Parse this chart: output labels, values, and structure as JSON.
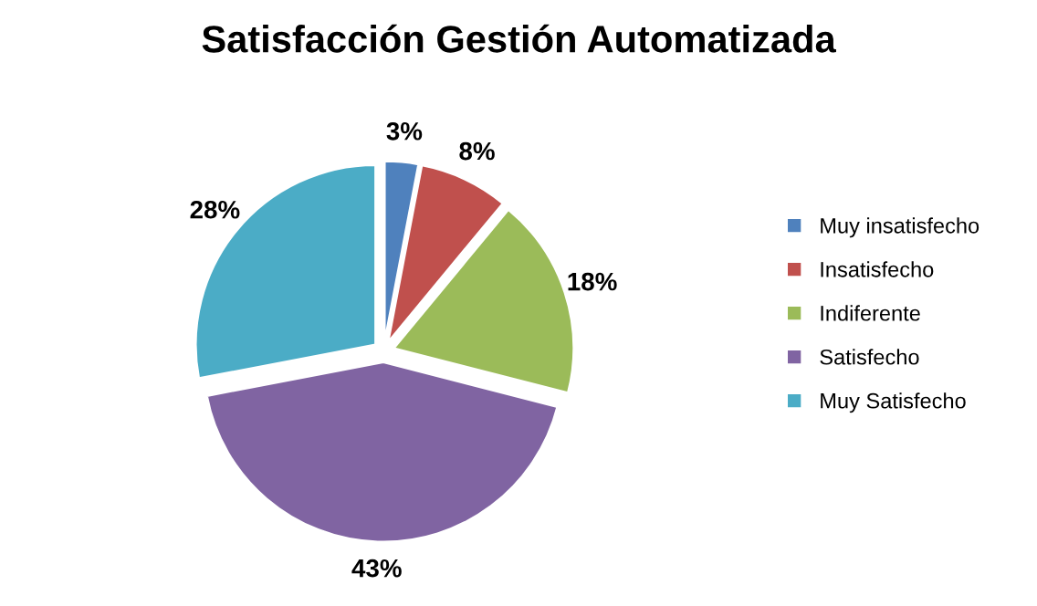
{
  "chart_data": {
    "type": "pie",
    "title": "Satisfacción Gestión Automatizada",
    "categories": [
      "Muy insatisfecho",
      "Insatisfecho",
      "Indiferente",
      "Satisfecho",
      "Muy Satisfecho"
    ],
    "values": [
      3,
      8,
      18,
      43,
      28
    ],
    "colors": [
      "#4f81bd",
      "#c0504d",
      "#9bbb59",
      "#8064a2",
      "#4bacc6"
    ],
    "value_labels": [
      "3%",
      "8%",
      "18%",
      "43%",
      "28%"
    ],
    "legend": "right"
  }
}
